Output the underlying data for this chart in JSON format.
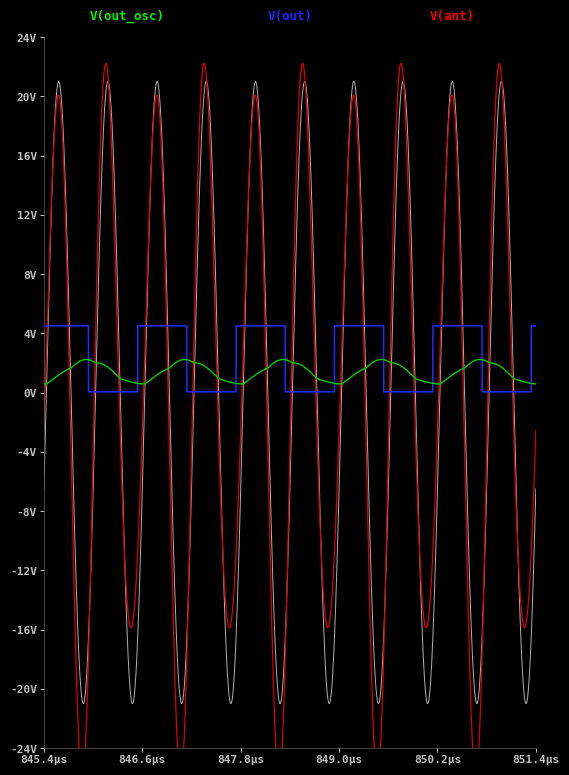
{
  "background_color": "#000000",
  "tick_color": "#c0c0c0",
  "legend_colors": [
    "#00ee00",
    "#2020ff",
    "#ee0000"
  ],
  "legend_labels": [
    "V(out_osc)",
    "V(out)",
    "V(ant)"
  ],
  "line_colors": {
    "white": "#b0b0b0",
    "blue": "#2828ff",
    "green": "#00cc00",
    "red": "#dd0000"
  },
  "xmin": 0.0008454,
  "xmax": 0.0008514,
  "ymin": -24,
  "ymax": 24,
  "yticks": [
    -24,
    -20,
    -16,
    -12,
    -8,
    -4,
    0,
    4,
    8,
    12,
    16,
    20,
    24
  ],
  "ytick_labels": [
    "-24V",
    "-20V",
    "-16V",
    "-12V",
    "-8V",
    "-4V",
    "0V",
    "4V",
    "8V",
    "12V",
    "16V",
    "20V",
    "24V"
  ],
  "xtick_vals": [
    0.0008454,
    0.0008466,
    0.0008478,
    0.000849,
    0.0008502,
    0.0008514
  ],
  "xtick_labels": [
    "845.4μs",
    "846.6μs",
    "847.8μs",
    "849.0μs",
    "850.2μs",
    "851.4μs"
  ],
  "figsize": [
    5.59,
    7.9
  ],
  "dpi": 100,
  "f_osc": 5000000,
  "f_ant": 5000000,
  "f_beat": 800000,
  "f_blue": 800000,
  "amp_white": 21.0,
  "amp_red": 21.0,
  "blue_high": 4.5,
  "blue_low": 0.05,
  "green_amp": 1.6,
  "green_base": 0.5
}
